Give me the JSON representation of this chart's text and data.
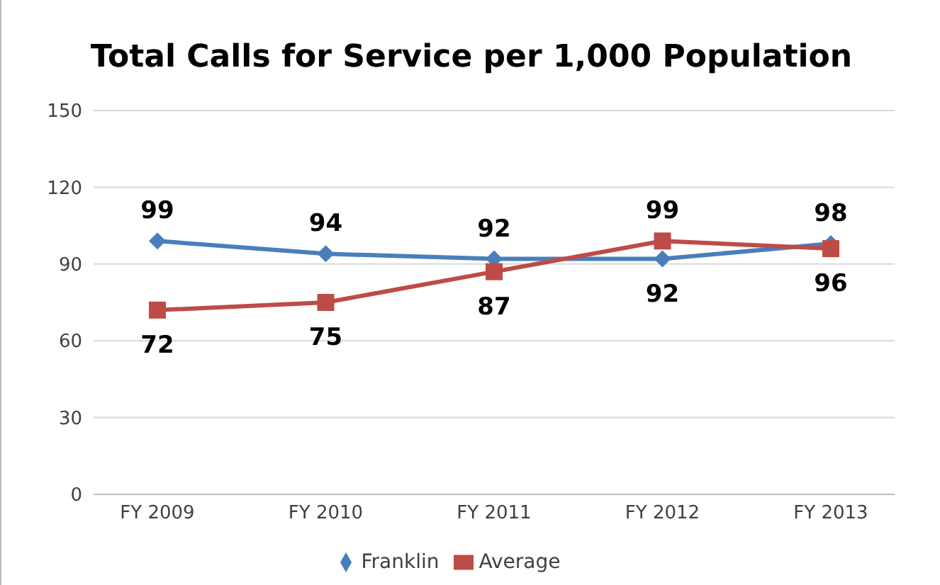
{
  "chart_data": {
    "type": "line",
    "title": "Total Calls for Service per 1,000 Population",
    "categories": [
      "FY 2009",
      "FY 2010",
      "FY 2011",
      "FY 2012",
      "FY 2013"
    ],
    "series": [
      {
        "name": "Franklin",
        "color": "#4a7ebb",
        "marker": "diamond",
        "values": [
          99,
          94,
          92,
          92,
          98
        ]
      },
      {
        "name": "Average",
        "color": "#be4b48",
        "marker": "square",
        "values": [
          72,
          75,
          87,
          99,
          96
        ]
      }
    ],
    "ylim": [
      0,
      150
    ],
    "yticks": [
      0,
      30,
      60,
      90,
      120,
      150
    ],
    "grid": "y",
    "legend": "bottom",
    "data_labels": true
  }
}
